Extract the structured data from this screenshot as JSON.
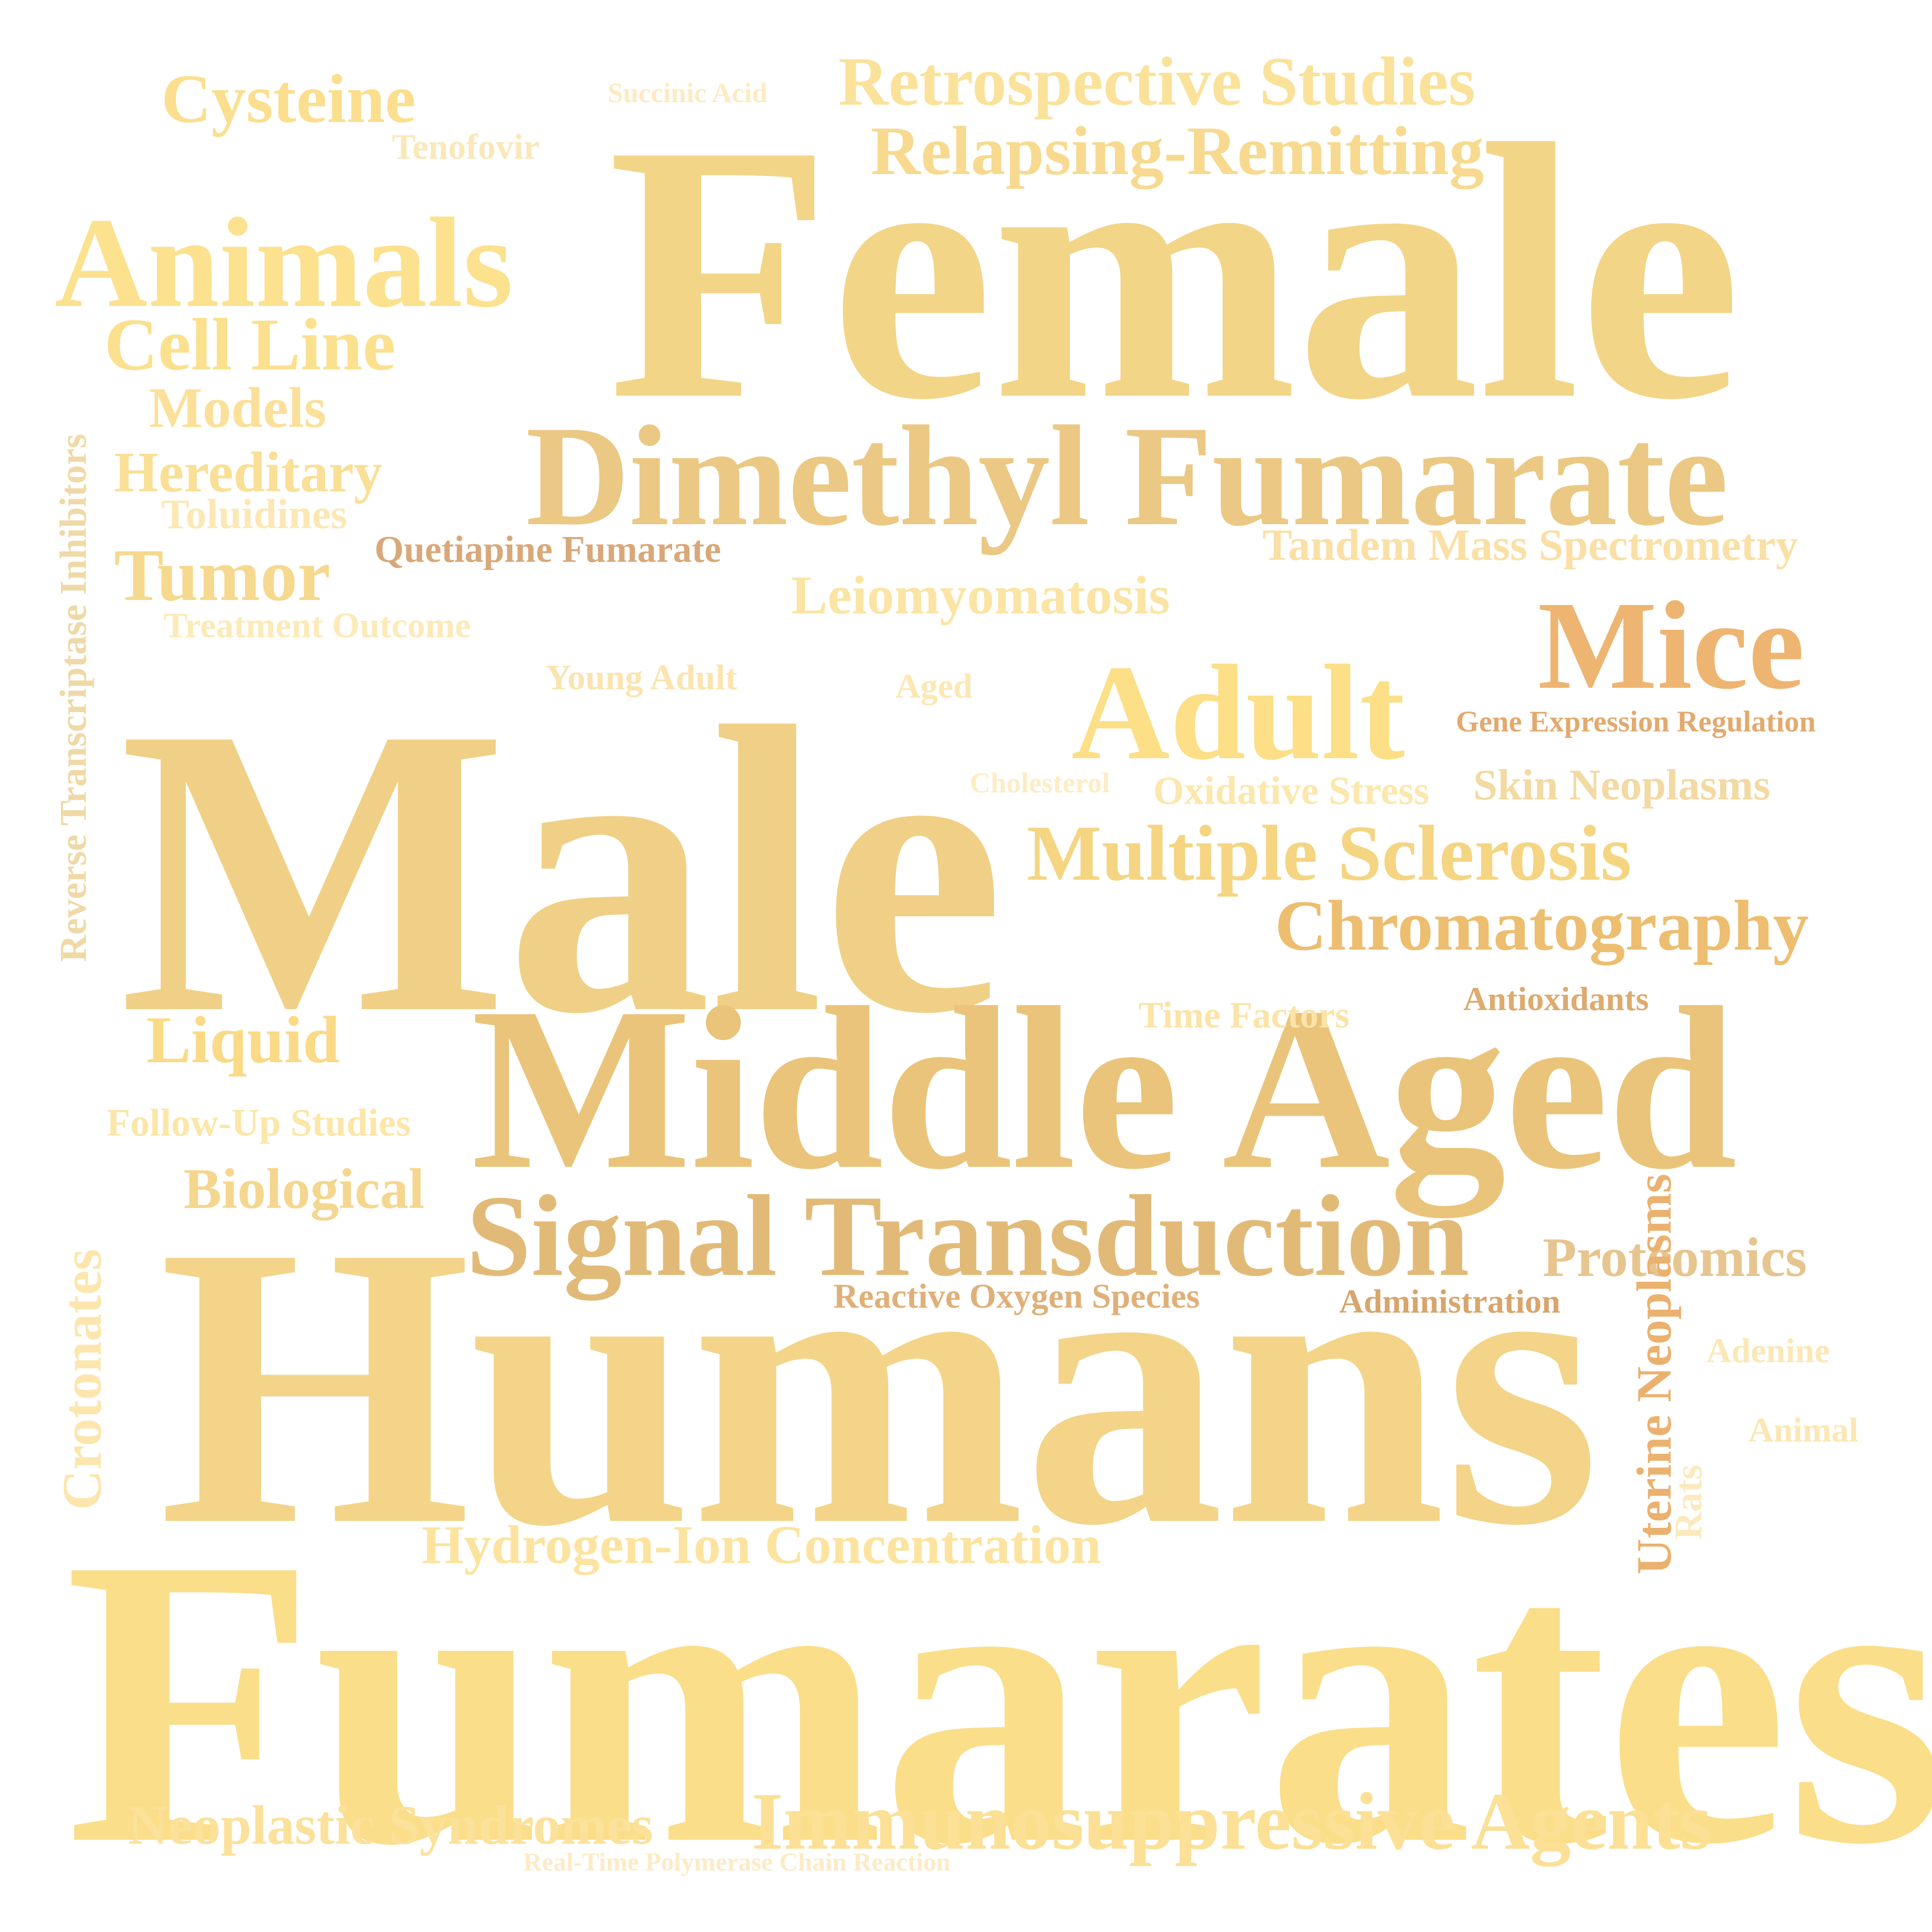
{
  "words": [
    {
      "id": "fumarates",
      "text": "Fumarates",
      "color": "#FBDE8A"
    },
    {
      "id": "humans",
      "text": "Humans",
      "color": "#F3D488"
    },
    {
      "id": "male",
      "text": "Male",
      "color": "#F0D086"
    },
    {
      "id": "female",
      "text": "Female",
      "color": "#F3D588"
    },
    {
      "id": "middle-aged",
      "text": "Middle Aged",
      "color": "#EAC47A"
    },
    {
      "id": "dimethyl-fumarate",
      "text": "Dimethyl Fumarate",
      "color": "#EBC883"
    },
    {
      "id": "signal-transduction",
      "text": "Signal Transduction",
      "color": "#E2BA78"
    },
    {
      "id": "animals",
      "text": "Animals",
      "color": "#FCE18E"
    },
    {
      "id": "adult",
      "text": "Adult",
      "color": "#FCDF86"
    },
    {
      "id": "mice",
      "text": "Mice",
      "color": "#EDB571"
    },
    {
      "id": "immunosuppressive-agents",
      "text": "Immunosuppressive Agents",
      "color": "#FBE096"
    },
    {
      "id": "multiple-sclerosis",
      "text": "Multiple Sclerosis",
      "color": "#F5D582"
    },
    {
      "id": "chromatography",
      "text": "Chromatography",
      "color": "#EDBE6F"
    },
    {
      "id": "retrospective-studies",
      "text": "Retrospective Studies",
      "color": "#FBE29A"
    },
    {
      "id": "relapsing-remitting",
      "text": "Relapsing-Remitting",
      "color": "#F7DA8F"
    },
    {
      "id": "cysteine",
      "text": "Cysteine",
      "color": "#FBDF8E"
    },
    {
      "id": "cell-line",
      "text": "Cell Line",
      "color": "#FBE08E"
    },
    {
      "id": "hydrogen-ion-concentration",
      "text": "Hydrogen-Ion Concentration",
      "color": "#FCE4A0"
    },
    {
      "id": "neoplastic-syndromes",
      "text": "Neoplastic Syndromes",
      "color": "#FBE19A"
    },
    {
      "id": "tumor",
      "text": "Tumor",
      "color": "#F6D98E"
    },
    {
      "id": "proteomics",
      "text": "Proteomics",
      "color": "#E6C58F"
    },
    {
      "id": "liquid",
      "text": "Liquid",
      "color": "#FADA86"
    },
    {
      "id": "models",
      "text": "Models",
      "color": "#FBE09A"
    },
    {
      "id": "hereditary",
      "text": "Hereditary",
      "color": "#FADF96"
    },
    {
      "id": "leiomyomatosis",
      "text": "Leiomyomatosis",
      "color": "#FBE4A4"
    },
    {
      "id": "biological",
      "text": "Biological",
      "color": "#F5D68E"
    },
    {
      "id": "tandem-mass-spectrometry",
      "text": "Tandem Mass Spectrometry",
      "color": "#FAE0A6"
    },
    {
      "id": "skin-neoplasms",
      "text": "Skin Neoplasms",
      "color": "#F3D9A2"
    },
    {
      "id": "crotonates",
      "text": "Crotonates",
      "color": "#FCE6AE"
    },
    {
      "id": "uterine-neoplasms",
      "text": "Uterine Neoplasms",
      "color": "#EBB16E"
    },
    {
      "id": "reverse-transcriptase-inhibitors",
      "text": "Reverse Transcriptase Inhibitors",
      "color": "#EFD9A6"
    },
    {
      "id": "toluidines",
      "text": "Toluidines",
      "color": "#FCE8B4"
    },
    {
      "id": "oxidative-stress",
      "text": "Oxidative Stress",
      "color": "#FCE7AC"
    },
    {
      "id": "follow-up-studies",
      "text": "Follow-Up Studies",
      "color": "#FCE6A8"
    },
    {
      "id": "quetiapine-fumarate",
      "text": "Quetiapine Fumarate",
      "color": "#D9A879"
    },
    {
      "id": "time-factors",
      "text": "Time Factors",
      "color": "#FCE4A8"
    },
    {
      "id": "tenofovir",
      "text": "Tenofovir",
      "color": "#FBE8B8"
    },
    {
      "id": "treatment-outcome",
      "text": "Treatment Outcome",
      "color": "#FCEAB8"
    },
    {
      "id": "young-adult",
      "text": "Young Adult",
      "color": "#FBE4B0"
    },
    {
      "id": "aged",
      "text": "Aged",
      "color": "#FCE8B4"
    },
    {
      "id": "reactive-oxygen-species",
      "text": "Reactive Oxygen Species",
      "color": "#E0B079"
    },
    {
      "id": "administration",
      "text": "Administration",
      "color": "#D8A56C"
    },
    {
      "id": "antioxidants",
      "text": "Antioxidants",
      "color": "#DEAA6E"
    },
    {
      "id": "adenine",
      "text": "Adenine",
      "color": "#FCE8B6"
    },
    {
      "id": "animal",
      "text": "Animal",
      "color": "#FCE7B4"
    },
    {
      "id": "rats",
      "text": "Rats",
      "color": "#FCEABE"
    },
    {
      "id": "gene-expression-regulation",
      "text": "Gene Expression Regulation",
      "color": "#E3A96E"
    },
    {
      "id": "cholesterol",
      "text": "Cholesterol",
      "color": "#FDEDC6"
    },
    {
      "id": "succinic-acid",
      "text": "Succinic Acid",
      "color": "#FDEBC2"
    },
    {
      "id": "real-time-polymerase-chain-reaction",
      "text": "Real-Time Polymerase Chain Reaction",
      "color": "#FDEBC6"
    }
  ]
}
